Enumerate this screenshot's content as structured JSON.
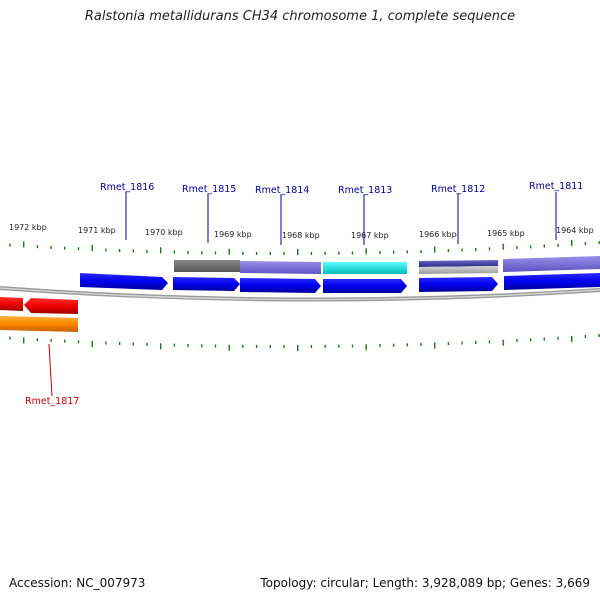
{
  "title": "Ralstonia metallidurans CH34 chromosome 1, complete sequence",
  "footer": {
    "accession": "Accession: NC_007973",
    "summary": "Topology: circular; Length: 3,928,089 bp; Genes: 3,669"
  },
  "ticks": [
    {
      "label": "1972 kbp"
    },
    {
      "label": "1971 kbp"
    },
    {
      "label": "1970 kbp"
    },
    {
      "label": "1969 kbp"
    },
    {
      "label": "1968 kbp"
    },
    {
      "label": "1967 kbp"
    },
    {
      "label": "1966 kbp"
    },
    {
      "label": "1965 kbp"
    },
    {
      "label": "1964 kbp"
    }
  ],
  "genes": [
    {
      "label": "Rmet_1816",
      "strand": "forward"
    },
    {
      "label": "Rmet_1815",
      "strand": "forward"
    },
    {
      "label": "Rmet_1814",
      "strand": "forward"
    },
    {
      "label": "Rmet_1813",
      "strand": "forward"
    },
    {
      "label": "Rmet_1812",
      "strand": "forward"
    },
    {
      "label": "Rmet_1811",
      "strand": "forward"
    },
    {
      "label": "Rmet_1817",
      "strand": "reverse"
    }
  ],
  "colors": {
    "forward_gene": "#0000ee",
    "reverse_gene": "#ee0000",
    "reverse_feature": "#ff8800",
    "forward_label": "#000099",
    "reverse_label": "#cc0000",
    "tick": "#1a7a1a",
    "backbone": "#888888",
    "feature_gray": "#6e6e6e",
    "feature_purple": "#7b6fd6",
    "feature_cyan": "#00e5e5",
    "feature_darkblue": "#4a48a8",
    "feature_lightgray": "#b8b8b8"
  }
}
